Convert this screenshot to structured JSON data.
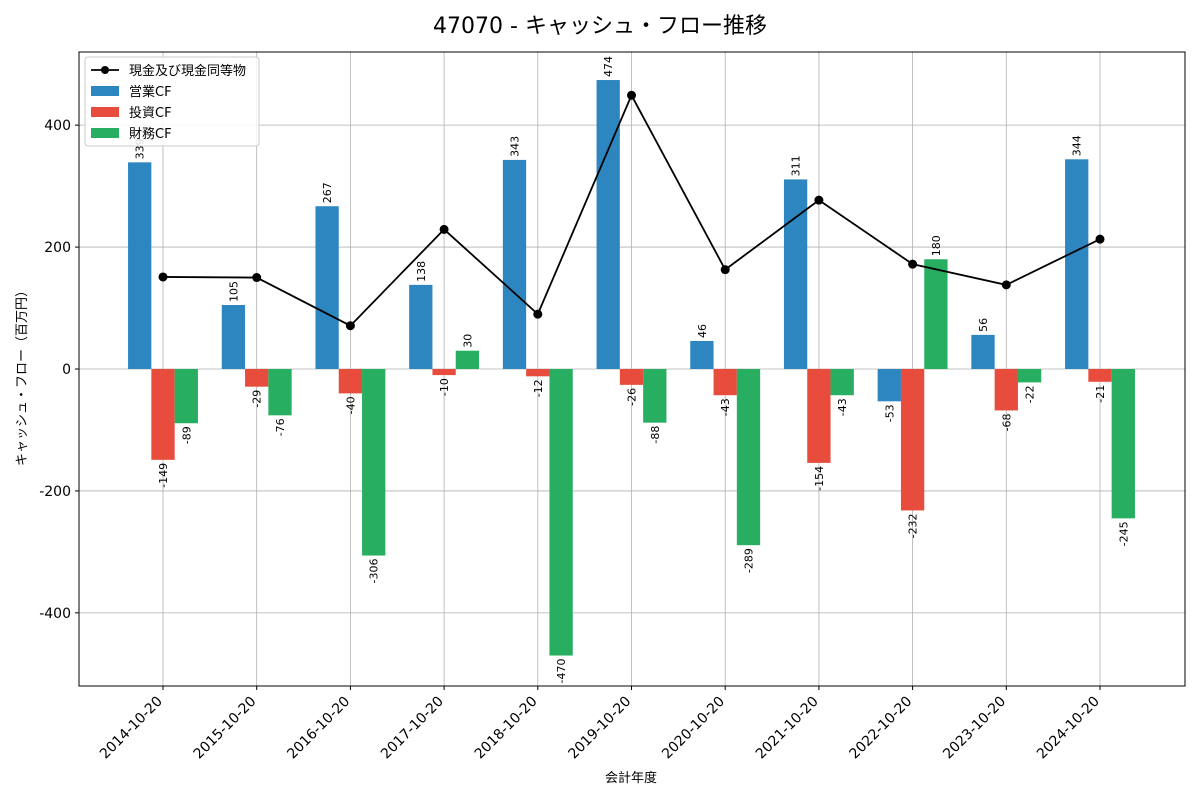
{
  "chart_data": {
    "type": "bar",
    "title": "47070 - キャッシュ・フロー推移",
    "xlabel": "会計年度",
    "ylabel": "キャッシュ・フロー（百万円）",
    "ylim": [
      -520,
      520
    ],
    "yticks": [
      -400,
      -200,
      0,
      200,
      400
    ],
    "grid": true,
    "legend_position": "top-left",
    "categories": [
      "2014-10-20",
      "2015-10-20",
      "2016-10-20",
      "2017-10-20",
      "2018-10-20",
      "2019-10-20",
      "2020-10-20",
      "2021-10-20",
      "2022-10-20",
      "2023-10-20",
      "2024-10-20"
    ],
    "series": [
      {
        "name": "営業CF",
        "type": "bar",
        "color": "#2e86c1",
        "values": [
          339,
          105,
          267,
          138,
          343,
          474,
          46,
          311,
          -53,
          56,
          344
        ]
      },
      {
        "name": "投資CF",
        "type": "bar",
        "color": "#e74c3c",
        "values": [
          -149,
          -29,
          -40,
          -10,
          -12,
          -26,
          -43,
          -154,
          -232,
          -68,
          -21
        ]
      },
      {
        "name": "財務CF",
        "type": "bar",
        "color": "#27ae60",
        "values": [
          -89,
          -76,
          -306,
          30,
          -470,
          -88,
          -289,
          -43,
          180,
          -22,
          -245
        ]
      },
      {
        "name": "現金及び現金同等物",
        "type": "line",
        "color": "#000000",
        "values": [
          151,
          150,
          71,
          229,
          90,
          449,
          163,
          277,
          172,
          138,
          213
        ]
      }
    ]
  }
}
